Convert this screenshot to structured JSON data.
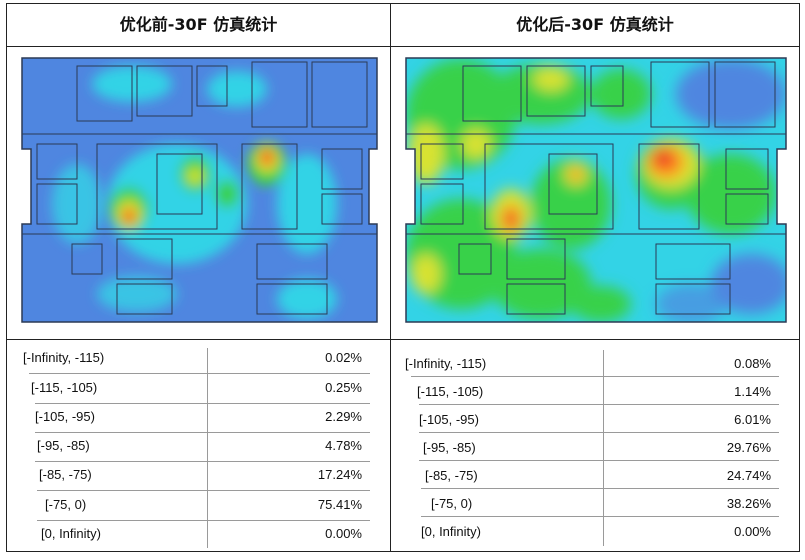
{
  "panels": [
    {
      "title": "优化前-30F 仿真统计",
      "stats": [
        {
          "range": "[-Infinity, -115)",
          "percent": "0.02%"
        },
        {
          "range": "[-115, -105)",
          "percent": "0.25%"
        },
        {
          "range": "[-105, -95)",
          "percent": "2.29%"
        },
        {
          "range": "[-95, -85)",
          "percent": "4.78%"
        },
        {
          "range": "[-85, -75)",
          "percent": "17.24%"
        },
        {
          "range": "[-75, 0)",
          "percent": "75.41%"
        },
        {
          "range": "[0, Infinity)",
          "percent": "0.00%"
        }
      ]
    },
    {
      "title": "优化后-30F 仿真统计",
      "stats": [
        {
          "range": "[-Infinity, -115)",
          "percent": "0.08%"
        },
        {
          "range": "[-115, -105)",
          "percent": "1.14%"
        },
        {
          "range": "[-105, -95)",
          "percent": "6.01%"
        },
        {
          "range": "[-95, -85)",
          "percent": "29.76%"
        },
        {
          "range": "[-85, -75)",
          "percent": "24.74%"
        },
        {
          "range": "[-75, 0)",
          "percent": "38.26%"
        },
        {
          "range": "[0, Infinity)",
          "percent": "0.00%"
        }
      ]
    }
  ],
  "colors": {
    "heat_low": "#4f86e0",
    "heat_mid_low": "#33d3e6",
    "heat_mid": "#39d14a",
    "heat_mid_high": "#d8e233",
    "heat_high": "#ff8c1a",
    "heat_peak": "#e8202a",
    "wall": "#2b3a55"
  }
}
